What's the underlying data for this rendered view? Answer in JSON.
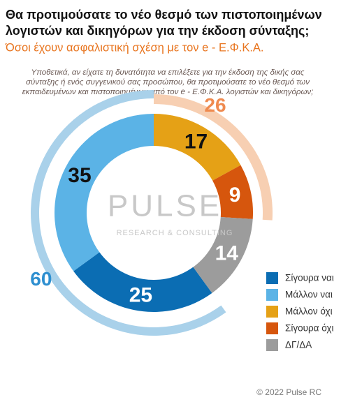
{
  "chart_data": {
    "type": "donut",
    "title_lines": [
      "Θα προτιμούσατε το νέο θεσμό των πιστοποιημένων",
      "λογιστών και δικηγόρων για την έκδοση σύνταξης;"
    ],
    "subtitle": "Όσοι έχουν ασφαλιστική σχέση με τον e - Ε.Φ.Κ.Α.",
    "question_lines": [
      "Υποθετικά, αν είχατε τη δυνατότητα να επιλέξετε για την έκδοση της δικής σας",
      "σύνταξης ή ενός συγγενικού σας προσώπου, θα προτιμούσατε το νέο θεσμό των",
      "εκπαιδευμένων και πιστοποιημένων από τον e - Ε.Φ.Κ.Α. λογιστών και δικηγόρων;"
    ],
    "categories": [
      "Σίγουρα ναι",
      "Μάλλον ναι",
      "Μάλλον όχι",
      "Σίγουρα όχι",
      "ΔΓ/ΔΑ"
    ],
    "values": [
      25,
      35,
      17,
      9,
      14
    ],
    "colors": [
      "#0b6db3",
      "#5bb3e6",
      "#e5a116",
      "#d6560d",
      "#9c9c9c"
    ],
    "label_colors": [
      "#ffffff",
      "#111111",
      "#111111",
      "#ffffff",
      "#ffffff"
    ],
    "totals": [
      {
        "value": 60,
        "color": "#a9d1ea",
        "label_color": "#2e8fd0"
      },
      {
        "value": 26,
        "color": "#f7cfb2",
        "label_color": "#ef8a4f"
      }
    ],
    "watermark": [
      "PULSE",
      "RESEARCH & CONSULTING"
    ],
    "footer": "© 2022 Pulse RC"
  }
}
